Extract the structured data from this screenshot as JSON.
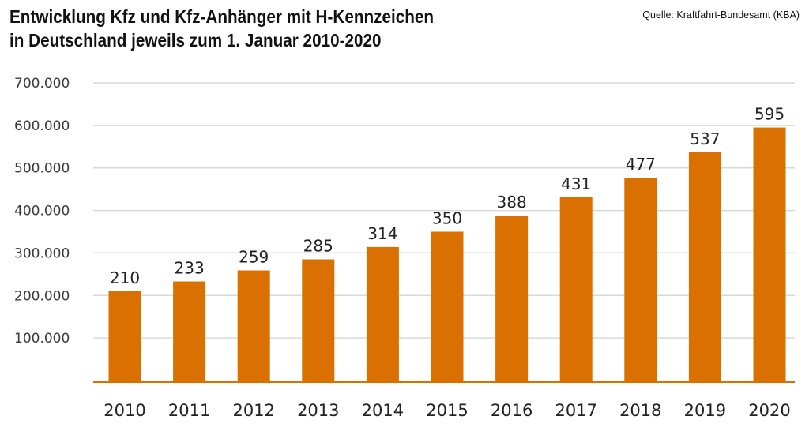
{
  "header": {
    "title_line1": "Entwicklung Kfz und Kfz-Anhänger mit H-Kennzeichen",
    "title_line2": "in Deutschland jeweils zum 1. Januar 2010-2020",
    "source": "Quelle: Kraftfahrt-Bundesamt (KBA)"
  },
  "colors": {
    "bar": "#d97000",
    "grid": "#d9d9d9",
    "baseline": "#d97000"
  },
  "chart_data": {
    "type": "bar",
    "title": "Entwicklung Kfz und Kfz-Anhänger mit H-Kennzeichen in Deutschland jeweils zum 1. Januar 2010-2020",
    "xlabel": "",
    "ylabel": "",
    "categories": [
      "2010",
      "2011",
      "2012",
      "2013",
      "2014",
      "2015",
      "2016",
      "2017",
      "2018",
      "2019",
      "2020"
    ],
    "values": [
      210000,
      233000,
      259000,
      285000,
      314000,
      350000,
      388000,
      431000,
      477000,
      537000,
      595000
    ],
    "data_labels": [
      "210",
      "233",
      "259",
      "285",
      "314",
      "350",
      "388",
      "431",
      "477",
      "537",
      "595"
    ],
    "ylim": [
      0,
      700000
    ],
    "yticks": [
      100000,
      200000,
      300000,
      400000,
      500000,
      600000,
      700000
    ],
    "ytick_labels": [
      "100.000",
      "200.000",
      "300.000",
      "400.000",
      "500.000",
      "600.000",
      "700.000"
    ],
    "grid": true,
    "legend": "none"
  }
}
